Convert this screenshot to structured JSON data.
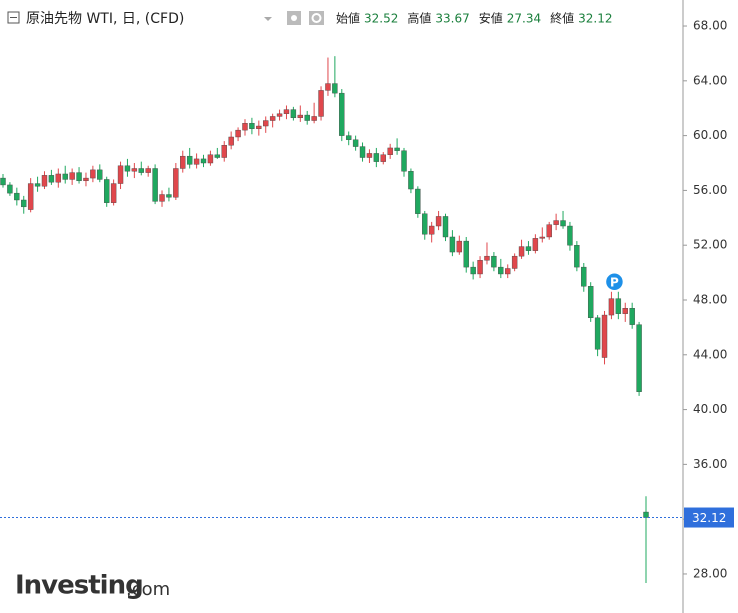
{
  "chart_data": {
    "type": "candlestick",
    "title": "原油先物 WTI, 日, (CFD)",
    "ohlc_labels": [
      "始値",
      "高値",
      "安値",
      "終値"
    ],
    "marker_label": "P",
    "watermark": {
      "brand": "Investing",
      "suffix": ".com"
    },
    "up_color": "#e0474c",
    "down_color": "#1fa85f",
    "last_price_color": "#2f6fdc",
    "ylim": [
      25.15,
      69.9
    ],
    "yticks": [
      {
        "value": 28,
        "label": "28.00"
      },
      {
        "value": 32,
        "label": "32.00"
      },
      {
        "value": 36,
        "label": "36.00"
      },
      {
        "value": 40,
        "label": "40.00"
      },
      {
        "value": 44,
        "label": "44.00"
      },
      {
        "value": 48,
        "label": "48.00"
      },
      {
        "value": 52,
        "label": "52.00"
      },
      {
        "value": 56,
        "label": "56.00"
      },
      {
        "value": 60,
        "label": "60.00"
      },
      {
        "value": 64,
        "label": "64.00"
      },
      {
        "value": 68,
        "label": "68.00"
      }
    ],
    "open": [
      56.9,
      56.4,
      55.8,
      55.3,
      54.6,
      56.5,
      56.3,
      57.1,
      56.6,
      57.2,
      56.8,
      57.3,
      56.7,
      56.9,
      57.5,
      56.8,
      55.1,
      56.5,
      57.8,
      57.4,
      57.6,
      57.3,
      57.6,
      55.2,
      55.7,
      55.5,
      57.6,
      58.5,
      57.9,
      58.3,
      58.0,
      58.6,
      58.4,
      59.3,
      59.9,
      60.4,
      60.9,
      60.5,
      60.7,
      61.1,
      61.4,
      61.6,
      61.9,
      61.3,
      61.5,
      61.1,
      61.4,
      63.3,
      63.8,
      63.1,
      60.0,
      59.7,
      59.2,
      58.4,
      58.7,
      58.1,
      58.6,
      59.1,
      58.9,
      57.4,
      56.1,
      54.3,
      52.8,
      53.4,
      54.1,
      52.6,
      51.5,
      52.3,
      50.4,
      49.9,
      50.9,
      51.2,
      50.4,
      49.9,
      50.3,
      51.2,
      51.9,
      51.6,
      52.5,
      52.6,
      53.5,
      53.8,
      53.4,
      52.0,
      50.4,
      49.0,
      46.7,
      43.8,
      46.9,
      48.1,
      47.0,
      47.4,
      46.2,
      32.52
    ],
    "high": [
      57.2,
      56.6,
      56.2,
      55.6,
      56.9,
      57.0,
      57.4,
      57.5,
      57.6,
      57.8,
      57.6,
      57.7,
      57.3,
      57.8,
      57.9,
      57.0,
      56.8,
      58.1,
      58.3,
      58.0,
      58.1,
      57.8,
      57.9,
      56.0,
      56.2,
      58.0,
      58.9,
      59.1,
      58.7,
      58.6,
      58.9,
      59.1,
      59.6,
      60.3,
      60.6,
      61.2,
      61.3,
      61.1,
      61.4,
      61.6,
      61.9,
      62.2,
      62.1,
      62.2,
      61.8,
      62.4,
      63.6,
      65.7,
      65.8,
      63.4,
      60.3,
      60.0,
      59.5,
      59.0,
      59.1,
      58.8,
      59.4,
      59.8,
      59.1,
      57.6,
      56.3,
      54.5,
      53.7,
      54.5,
      54.3,
      53.1,
      52.7,
      52.6,
      50.8,
      51.2,
      52.2,
      51.5,
      51.0,
      50.6,
      51.4,
      52.4,
      52.3,
      52.8,
      53.3,
      53.7,
      54.3,
      54.5,
      53.7,
      52.3,
      50.7,
      49.3,
      46.9,
      47.2,
      48.6,
      48.6,
      47.8,
      47.8,
      46.4,
      33.67
    ],
    "low": [
      56.2,
      55.6,
      54.9,
      54.3,
      54.4,
      55.9,
      56.1,
      56.4,
      56.2,
      56.5,
      56.4,
      56.5,
      56.3,
      56.6,
      56.6,
      54.8,
      54.9,
      56.1,
      57.0,
      56.9,
      57.1,
      57.0,
      55.0,
      54.8,
      55.2,
      55.3,
      57.3,
      57.6,
      57.6,
      57.7,
      57.8,
      58.3,
      58.1,
      59.0,
      59.6,
      60.0,
      60.1,
      60.0,
      60.2,
      60.6,
      61.1,
      61.2,
      61.1,
      61.0,
      60.8,
      60.9,
      61.1,
      62.9,
      62.8,
      59.6,
      59.3,
      58.9,
      58.1,
      58.0,
      57.7,
      57.9,
      58.3,
      58.6,
      57.0,
      55.8,
      54.0,
      52.4,
      52.2,
      53.1,
      52.3,
      51.2,
      51.3,
      50.0,
      49.5,
      49.6,
      50.6,
      50.1,
      49.6,
      49.6,
      50.1,
      51.0,
      51.3,
      51.4,
      52.2,
      52.4,
      53.1,
      53.2,
      51.6,
      50.1,
      48.6,
      46.4,
      43.9,
      43.3,
      46.6,
      46.6,
      46.4,
      45.9,
      41.0,
      27.34
    ],
    "close": [
      56.4,
      55.8,
      55.3,
      54.8,
      56.5,
      56.3,
      57.1,
      56.6,
      57.2,
      56.8,
      57.3,
      56.7,
      56.9,
      57.5,
      56.8,
      55.1,
      56.5,
      57.8,
      57.4,
      57.6,
      57.3,
      57.6,
      55.2,
      55.7,
      55.5,
      57.6,
      58.5,
      57.9,
      58.3,
      58.0,
      58.6,
      58.4,
      59.3,
      59.9,
      60.4,
      60.9,
      60.5,
      60.7,
      61.1,
      61.4,
      61.6,
      61.9,
      61.3,
      61.5,
      61.1,
      61.4,
      63.3,
      63.8,
      63.1,
      60.0,
      59.7,
      59.2,
      58.4,
      58.7,
      58.1,
      58.6,
      59.1,
      58.9,
      57.4,
      56.1,
      54.3,
      52.8,
      53.4,
      54.1,
      52.6,
      51.5,
      52.3,
      50.4,
      49.9,
      50.9,
      51.2,
      50.4,
      49.9,
      50.3,
      51.2,
      51.9,
      51.6,
      52.5,
      52.6,
      53.5,
      53.8,
      53.4,
      52.0,
      50.4,
      49.0,
      46.7,
      44.4,
      46.9,
      48.1,
      47.0,
      47.4,
      46.2,
      41.3,
      32.12
    ]
  }
}
